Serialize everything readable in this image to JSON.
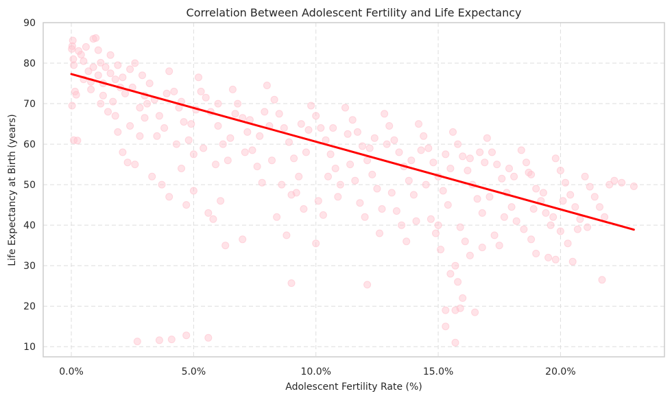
{
  "chart_data": {
    "type": "scatter",
    "title": "Correlation Between Adolescent Fertility and Life Expectancy",
    "xlabel": "Adolescent Fertility Rate (%)",
    "ylabel": "Life Expectancy at Birth (years)",
    "xlim": [
      -0.0115,
      0.2425
    ],
    "ylim": [
      7.5,
      90
    ],
    "x_ticks": [
      0,
      0.05,
      0.1,
      0.15,
      0.2
    ],
    "x_tick_labels": [
      "0.0%",
      "5.0%",
      "10.0%",
      "15.0%",
      "20.0%"
    ],
    "y_ticks": [
      10,
      20,
      30,
      40,
      50,
      60,
      70,
      80,
      90
    ],
    "y_tick_labels": [
      "10",
      "20",
      "30",
      "40",
      "50",
      "60",
      "70",
      "80",
      "90"
    ],
    "grid": true,
    "legend": "none",
    "point_color": "#ffc0cb",
    "point_alpha": 0.45,
    "trend_line": {
      "color": "#ff0000",
      "x": [
        0.0,
        0.23
      ],
      "y": [
        77.3,
        38.9
      ]
    },
    "series": [
      {
        "points": [
          [
            0.0002,
            83.5
          ],
          [
            0.0004,
            84.2
          ],
          [
            0.0006,
            85.6
          ],
          [
            0.0008,
            81.0
          ],
          [
            0.001,
            79.5
          ],
          [
            0.0015,
            73.0
          ],
          [
            0.002,
            72.2
          ],
          [
            0.0003,
            69.5
          ],
          [
            0.001,
            61.0
          ],
          [
            0.0025,
            60.9
          ],
          [
            0.003,
            83.0
          ],
          [
            0.004,
            82.1
          ],
          [
            0.005,
            80.5
          ],
          [
            0.006,
            84.0
          ],
          [
            0.007,
            78.0
          ],
          [
            0.008,
            75.4
          ],
          [
            0.009,
            86.0
          ],
          [
            0.01,
            86.2
          ],
          [
            0.011,
            83.2
          ],
          [
            0.012,
            80.1
          ],
          [
            0.014,
            79.0
          ],
          [
            0.016,
            77.5
          ],
          [
            0.018,
            76.0
          ],
          [
            0.02,
            74.0
          ],
          [
            0.022,
            72.5
          ],
          [
            0.024,
            78.5
          ],
          [
            0.026,
            80.0
          ],
          [
            0.028,
            69.0
          ],
          [
            0.03,
            66.5
          ],
          [
            0.013,
            72.0
          ],
          [
            0.015,
            68.0
          ],
          [
            0.017,
            70.5
          ],
          [
            0.019,
            63.0
          ],
          [
            0.021,
            58.0
          ],
          [
            0.023,
            55.5
          ],
          [
            0.026,
            55.0
          ],
          [
            0.028,
            62.0
          ],
          [
            0.032,
            75.0
          ],
          [
            0.034,
            71.0
          ],
          [
            0.036,
            67.0
          ],
          [
            0.038,
            64.0
          ],
          [
            0.04,
            78.0
          ],
          [
            0.042,
            73.0
          ],
          [
            0.044,
            69.0
          ],
          [
            0.046,
            65.5
          ],
          [
            0.048,
            61.0
          ],
          [
            0.05,
            57.5
          ],
          [
            0.033,
            52.0
          ],
          [
            0.037,
            50.0
          ],
          [
            0.04,
            47.0
          ],
          [
            0.045,
            54.0
          ],
          [
            0.047,
            45.0
          ],
          [
            0.05,
            48.5
          ],
          [
            0.052,
            76.5
          ],
          [
            0.055,
            71.5
          ],
          [
            0.057,
            68.0
          ],
          [
            0.06,
            64.5
          ],
          [
            0.062,
            60.0
          ],
          [
            0.064,
            56.0
          ],
          [
            0.056,
            43.0
          ],
          [
            0.058,
            41.5
          ],
          [
            0.061,
            46.0
          ],
          [
            0.063,
            35.0
          ],
          [
            0.066,
            73.5
          ],
          [
            0.068,
            70.0
          ],
          [
            0.07,
            66.5
          ],
          [
            0.072,
            63.0
          ],
          [
            0.074,
            58.5
          ],
          [
            0.076,
            54.5
          ],
          [
            0.078,
            50.5
          ],
          [
            0.07,
            36.5
          ],
          [
            0.08,
            74.5
          ],
          [
            0.083,
            71.0
          ],
          [
            0.085,
            67.5
          ],
          [
            0.087,
            64.0
          ],
          [
            0.089,
            60.5
          ],
          [
            0.091,
            56.5
          ],
          [
            0.093,
            52.0
          ],
          [
            0.09,
            47.5
          ],
          [
            0.095,
            44.0
          ],
          [
            0.084,
            42.0
          ],
          [
            0.088,
            37.5
          ],
          [
            0.098,
            69.5
          ],
          [
            0.1,
            67.0
          ],
          [
            0.102,
            64.0
          ],
          [
            0.104,
            61.0
          ],
          [
            0.106,
            57.5
          ],
          [
            0.108,
            54.0
          ],
          [
            0.11,
            50.0
          ],
          [
            0.101,
            46.0
          ],
          [
            0.103,
            42.5
          ],
          [
            0.1,
            35.5
          ],
          [
            0.112,
            69.0
          ],
          [
            0.115,
            66.0
          ],
          [
            0.117,
            63.0
          ],
          [
            0.119,
            59.5
          ],
          [
            0.121,
            56.0
          ],
          [
            0.123,
            52.5
          ],
          [
            0.125,
            49.0
          ],
          [
            0.118,
            45.5
          ],
          [
            0.12,
            42.0
          ],
          [
            0.126,
            38.0
          ],
          [
            0.128,
            67.5
          ],
          [
            0.13,
            64.5
          ],
          [
            0.132,
            61.0
          ],
          [
            0.134,
            58.0
          ],
          [
            0.136,
            54.5
          ],
          [
            0.138,
            51.0
          ],
          [
            0.14,
            47.5
          ],
          [
            0.133,
            43.5
          ],
          [
            0.135,
            40.0
          ],
          [
            0.137,
            36.0
          ],
          [
            0.142,
            65.0
          ],
          [
            0.144,
            62.0
          ],
          [
            0.146,
            59.0
          ],
          [
            0.148,
            55.5
          ],
          [
            0.15,
            52.0
          ],
          [
            0.152,
            48.5
          ],
          [
            0.154,
            45.0
          ],
          [
            0.147,
            41.5
          ],
          [
            0.149,
            38.0
          ],
          [
            0.151,
            34.0
          ],
          [
            0.156,
            63.0
          ],
          [
            0.158,
            60.0
          ],
          [
            0.16,
            57.0
          ],
          [
            0.162,
            53.5
          ],
          [
            0.164,
            50.0
          ],
          [
            0.166,
            46.5
          ],
          [
            0.168,
            43.0
          ],
          [
            0.159,
            39.5
          ],
          [
            0.161,
            36.0
          ],
          [
            0.163,
            32.5
          ],
          [
            0.157,
            30.0
          ],
          [
            0.155,
            28.0
          ],
          [
            0.158,
            26.0
          ],
          [
            0.16,
            22.0
          ],
          [
            0.159,
            19.5
          ],
          [
            0.157,
            11.0
          ],
          [
            0.165,
            18.5
          ],
          [
            0.153,
            19.0
          ],
          [
            0.17,
            61.5
          ],
          [
            0.172,
            58.0
          ],
          [
            0.174,
            55.0
          ],
          [
            0.176,
            51.5
          ],
          [
            0.178,
            48.0
          ],
          [
            0.18,
            44.5
          ],
          [
            0.182,
            41.0
          ],
          [
            0.173,
            37.5
          ],
          [
            0.175,
            35.0
          ],
          [
            0.168,
            34.5
          ],
          [
            0.184,
            58.5
          ],
          [
            0.186,
            55.5
          ],
          [
            0.188,
            52.5
          ],
          [
            0.19,
            49.0
          ],
          [
            0.192,
            46.0
          ],
          [
            0.194,
            43.0
          ],
          [
            0.196,
            40.0
          ],
          [
            0.188,
            36.5
          ],
          [
            0.19,
            33.0
          ],
          [
            0.195,
            32.0
          ],
          [
            0.198,
            56.5
          ],
          [
            0.2,
            53.5
          ],
          [
            0.202,
            50.5
          ],
          [
            0.204,
            47.5
          ],
          [
            0.206,
            44.5
          ],
          [
            0.208,
            41.5
          ],
          [
            0.2,
            38.5
          ],
          [
            0.203,
            35.5
          ],
          [
            0.205,
            31.0
          ],
          [
            0.198,
            31.5
          ],
          [
            0.21,
            52.0
          ],
          [
            0.212,
            49.5
          ],
          [
            0.214,
            47.0
          ],
          [
            0.216,
            44.5
          ],
          [
            0.218,
            42.0
          ],
          [
            0.211,
            39.5
          ],
          [
            0.22,
            50.0
          ],
          [
            0.222,
            51.0
          ],
          [
            0.225,
            50.5
          ],
          [
            0.23,
            49.6
          ],
          [
            0.217,
            26.5
          ],
          [
            0.027,
            11.3
          ],
          [
            0.036,
            11.6
          ],
          [
            0.041,
            11.8
          ],
          [
            0.047,
            12.8
          ],
          [
            0.056,
            12.2
          ],
          [
            0.09,
            25.7
          ],
          [
            0.121,
            25.3
          ],
          [
            0.157,
            19.0
          ],
          [
            0.153,
            15.0
          ],
          [
            0.005,
            76.0
          ],
          [
            0.008,
            73.5
          ],
          [
            0.012,
            70.0
          ],
          [
            0.018,
            67.0
          ],
          [
            0.024,
            64.5
          ],
          [
            0.03,
            72.0
          ],
          [
            0.035,
            62.0
          ],
          [
            0.043,
            60.0
          ],
          [
            0.049,
            65.0
          ],
          [
            0.054,
            59.0
          ],
          [
            0.059,
            55.0
          ],
          [
            0.065,
            61.5
          ],
          [
            0.071,
            58.0
          ],
          [
            0.077,
            62.0
          ],
          [
            0.082,
            56.0
          ],
          [
            0.086,
            50.0
          ],
          [
            0.092,
            48.0
          ],
          [
            0.096,
            58.0
          ],
          [
            0.105,
            52.0
          ],
          [
            0.109,
            47.0
          ],
          [
            0.114,
            55.0
          ],
          [
            0.116,
            51.0
          ],
          [
            0.122,
            59.0
          ],
          [
            0.127,
            44.0
          ],
          [
            0.131,
            48.0
          ],
          [
            0.139,
            56.0
          ],
          [
            0.141,
            41.0
          ],
          [
            0.145,
            50.0
          ],
          [
            0.15,
            40.0
          ],
          [
            0.155,
            54.0
          ],
          [
            0.167,
            58.0
          ],
          [
            0.171,
            47.0
          ],
          [
            0.177,
            42.0
          ],
          [
            0.181,
            52.0
          ],
          [
            0.185,
            39.0
          ],
          [
            0.189,
            44.0
          ],
          [
            0.193,
            48.0
          ],
          [
            0.197,
            42.0
          ],
          [
            0.201,
            46.0
          ],
          [
            0.207,
            39.0
          ],
          [
            0.009,
            79.0
          ],
          [
            0.011,
            77.0
          ],
          [
            0.013,
            75.0
          ],
          [
            0.016,
            82.0
          ],
          [
            0.019,
            79.5
          ],
          [
            0.021,
            76.5
          ],
          [
            0.025,
            74.0
          ],
          [
            0.029,
            77.0
          ],
          [
            0.031,
            70.0
          ],
          [
            0.039,
            72.5
          ],
          [
            0.045,
            70.5
          ],
          [
            0.051,
            68.5
          ],
          [
            0.053,
            73.0
          ],
          [
            0.06,
            70.0
          ],
          [
            0.067,
            67.5
          ],
          [
            0.073,
            66.0
          ],
          [
            0.079,
            68.0
          ],
          [
            0.081,
            64.5
          ],
          [
            0.094,
            65.0
          ],
          [
            0.097,
            63.5
          ],
          [
            0.107,
            64.0
          ],
          [
            0.113,
            62.5
          ],
          [
            0.124,
            61.5
          ],
          [
            0.129,
            60.0
          ],
          [
            0.143,
            58.5
          ],
          [
            0.153,
            57.5
          ],
          [
            0.163,
            56.5
          ],
          [
            0.169,
            55.5
          ],
          [
            0.179,
            54.0
          ],
          [
            0.187,
            53.0
          ]
        ]
      }
    ]
  }
}
